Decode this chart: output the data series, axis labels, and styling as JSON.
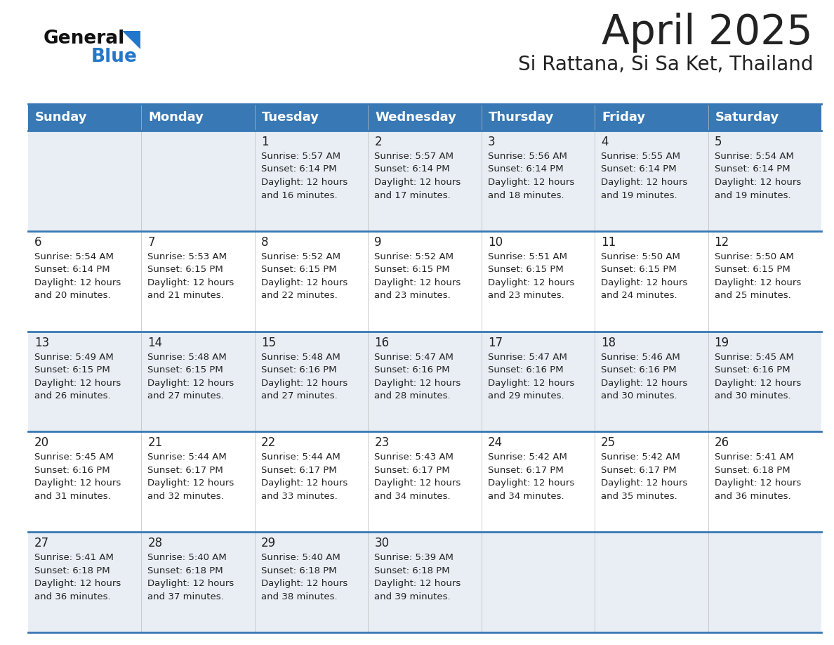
{
  "title": "April 2025",
  "subtitle": "Si Rattana, Si Sa Ket, Thailand",
  "header_bg_color": "#3878b4",
  "header_text_color": "#ffffff",
  "cell_bg_color_odd": "#e8eef4",
  "cell_bg_color_even": "#ffffff",
  "row_separator_color": "#3878b4",
  "text_color": "#222222",
  "days_of_week": [
    "Sunday",
    "Monday",
    "Tuesday",
    "Wednesday",
    "Thursday",
    "Friday",
    "Saturday"
  ],
  "logo_general_color": "#111111",
  "logo_blue_color": "#2277cc",
  "logo_triangle_color": "#2277cc",
  "weeks": [
    [
      {
        "day": "",
        "sunrise": "",
        "sunset": "",
        "daylight": ""
      },
      {
        "day": "",
        "sunrise": "",
        "sunset": "",
        "daylight": ""
      },
      {
        "day": "1",
        "sunrise": "Sunrise: 5:57 AM",
        "sunset": "Sunset: 6:14 PM",
        "daylight": "Daylight: 12 hours\nand 16 minutes."
      },
      {
        "day": "2",
        "sunrise": "Sunrise: 5:57 AM",
        "sunset": "Sunset: 6:14 PM",
        "daylight": "Daylight: 12 hours\nand 17 minutes."
      },
      {
        "day": "3",
        "sunrise": "Sunrise: 5:56 AM",
        "sunset": "Sunset: 6:14 PM",
        "daylight": "Daylight: 12 hours\nand 18 minutes."
      },
      {
        "day": "4",
        "sunrise": "Sunrise: 5:55 AM",
        "sunset": "Sunset: 6:14 PM",
        "daylight": "Daylight: 12 hours\nand 19 minutes."
      },
      {
        "day": "5",
        "sunrise": "Sunrise: 5:54 AM",
        "sunset": "Sunset: 6:14 PM",
        "daylight": "Daylight: 12 hours\nand 19 minutes."
      }
    ],
    [
      {
        "day": "6",
        "sunrise": "Sunrise: 5:54 AM",
        "sunset": "Sunset: 6:14 PM",
        "daylight": "Daylight: 12 hours\nand 20 minutes."
      },
      {
        "day": "7",
        "sunrise": "Sunrise: 5:53 AM",
        "sunset": "Sunset: 6:15 PM",
        "daylight": "Daylight: 12 hours\nand 21 minutes."
      },
      {
        "day": "8",
        "sunrise": "Sunrise: 5:52 AM",
        "sunset": "Sunset: 6:15 PM",
        "daylight": "Daylight: 12 hours\nand 22 minutes."
      },
      {
        "day": "9",
        "sunrise": "Sunrise: 5:52 AM",
        "sunset": "Sunset: 6:15 PM",
        "daylight": "Daylight: 12 hours\nand 23 minutes."
      },
      {
        "day": "10",
        "sunrise": "Sunrise: 5:51 AM",
        "sunset": "Sunset: 6:15 PM",
        "daylight": "Daylight: 12 hours\nand 23 minutes."
      },
      {
        "day": "11",
        "sunrise": "Sunrise: 5:50 AM",
        "sunset": "Sunset: 6:15 PM",
        "daylight": "Daylight: 12 hours\nand 24 minutes."
      },
      {
        "day": "12",
        "sunrise": "Sunrise: 5:50 AM",
        "sunset": "Sunset: 6:15 PM",
        "daylight": "Daylight: 12 hours\nand 25 minutes."
      }
    ],
    [
      {
        "day": "13",
        "sunrise": "Sunrise: 5:49 AM",
        "sunset": "Sunset: 6:15 PM",
        "daylight": "Daylight: 12 hours\nand 26 minutes."
      },
      {
        "day": "14",
        "sunrise": "Sunrise: 5:48 AM",
        "sunset": "Sunset: 6:15 PM",
        "daylight": "Daylight: 12 hours\nand 27 minutes."
      },
      {
        "day": "15",
        "sunrise": "Sunrise: 5:48 AM",
        "sunset": "Sunset: 6:16 PM",
        "daylight": "Daylight: 12 hours\nand 27 minutes."
      },
      {
        "day": "16",
        "sunrise": "Sunrise: 5:47 AM",
        "sunset": "Sunset: 6:16 PM",
        "daylight": "Daylight: 12 hours\nand 28 minutes."
      },
      {
        "day": "17",
        "sunrise": "Sunrise: 5:47 AM",
        "sunset": "Sunset: 6:16 PM",
        "daylight": "Daylight: 12 hours\nand 29 minutes."
      },
      {
        "day": "18",
        "sunrise": "Sunrise: 5:46 AM",
        "sunset": "Sunset: 6:16 PM",
        "daylight": "Daylight: 12 hours\nand 30 minutes."
      },
      {
        "day": "19",
        "sunrise": "Sunrise: 5:45 AM",
        "sunset": "Sunset: 6:16 PM",
        "daylight": "Daylight: 12 hours\nand 30 minutes."
      }
    ],
    [
      {
        "day": "20",
        "sunrise": "Sunrise: 5:45 AM",
        "sunset": "Sunset: 6:16 PM",
        "daylight": "Daylight: 12 hours\nand 31 minutes."
      },
      {
        "day": "21",
        "sunrise": "Sunrise: 5:44 AM",
        "sunset": "Sunset: 6:17 PM",
        "daylight": "Daylight: 12 hours\nand 32 minutes."
      },
      {
        "day": "22",
        "sunrise": "Sunrise: 5:44 AM",
        "sunset": "Sunset: 6:17 PM",
        "daylight": "Daylight: 12 hours\nand 33 minutes."
      },
      {
        "day": "23",
        "sunrise": "Sunrise: 5:43 AM",
        "sunset": "Sunset: 6:17 PM",
        "daylight": "Daylight: 12 hours\nand 34 minutes."
      },
      {
        "day": "24",
        "sunrise": "Sunrise: 5:42 AM",
        "sunset": "Sunset: 6:17 PM",
        "daylight": "Daylight: 12 hours\nand 34 minutes."
      },
      {
        "day": "25",
        "sunrise": "Sunrise: 5:42 AM",
        "sunset": "Sunset: 6:17 PM",
        "daylight": "Daylight: 12 hours\nand 35 minutes."
      },
      {
        "day": "26",
        "sunrise": "Sunrise: 5:41 AM",
        "sunset": "Sunset: 6:18 PM",
        "daylight": "Daylight: 12 hours\nand 36 minutes."
      }
    ],
    [
      {
        "day": "27",
        "sunrise": "Sunrise: 5:41 AM",
        "sunset": "Sunset: 6:18 PM",
        "daylight": "Daylight: 12 hours\nand 36 minutes."
      },
      {
        "day": "28",
        "sunrise": "Sunrise: 5:40 AM",
        "sunset": "Sunset: 6:18 PM",
        "daylight": "Daylight: 12 hours\nand 37 minutes."
      },
      {
        "day": "29",
        "sunrise": "Sunrise: 5:40 AM",
        "sunset": "Sunset: 6:18 PM",
        "daylight": "Daylight: 12 hours\nand 38 minutes."
      },
      {
        "day": "30",
        "sunrise": "Sunrise: 5:39 AM",
        "sunset": "Sunset: 6:18 PM",
        "daylight": "Daylight: 12 hours\nand 39 minutes."
      },
      {
        "day": "",
        "sunrise": "",
        "sunset": "",
        "daylight": ""
      },
      {
        "day": "",
        "sunrise": "",
        "sunset": "",
        "daylight": ""
      },
      {
        "day": "",
        "sunrise": "",
        "sunset": "",
        "daylight": ""
      }
    ]
  ]
}
